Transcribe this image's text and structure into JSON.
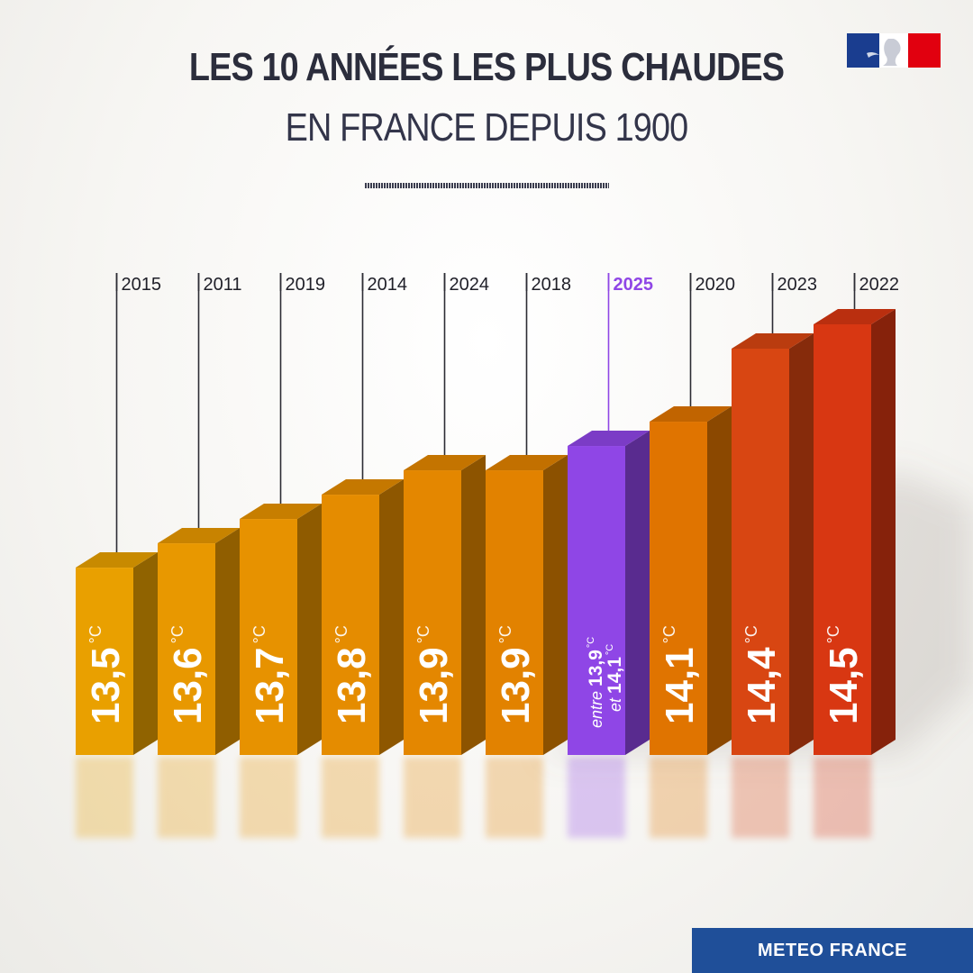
{
  "header": {
    "title": "LES 10 ANNÉES LES PLUS CHAUDES",
    "subtitle": "EN FRANCE DEPUIS 1900"
  },
  "logo": {
    "icon": "marianne-flag-icon"
  },
  "source": {
    "label": "METEO FRANCE"
  },
  "chart_data": {
    "type": "bar",
    "title": "LES 10 ANNÉES LES PLUS CHAUDES EN FRANCE DEPUIS 1900",
    "categories": [
      "2015",
      "2011",
      "2019",
      "2014",
      "2024",
      "2018",
      "2025",
      "2020",
      "2023",
      "2022"
    ],
    "values": [
      13.5,
      13.6,
      13.7,
      13.8,
      13.9,
      13.9,
      14.0,
      14.1,
      14.4,
      14.5
    ],
    "labels": [
      "13,5",
      "13,6",
      "13,7",
      "13,8",
      "13,9",
      "13,9",
      "",
      "14,1",
      "14,4",
      "14,5"
    ],
    "unit": "°C",
    "highlight": {
      "category": "2025",
      "range": [
        13.9,
        14.1
      ],
      "label_prefix": "entre",
      "label_low": "13,9",
      "label_mid": "et",
      "label_high": "14,1",
      "color": "#8f46e6"
    },
    "colors": [
      "#e9a000",
      "#e89800",
      "#e79200",
      "#e58c00",
      "#e48700",
      "#e28200",
      "#8f46e6",
      "#e07400",
      "#d84612",
      "#d83712"
    ],
    "highlight_year_color": "#8f46e6",
    "xlabel": "",
    "ylabel": "",
    "ylim": [
      12.73,
      14.5
    ],
    "grid": false,
    "legend": "none"
  }
}
